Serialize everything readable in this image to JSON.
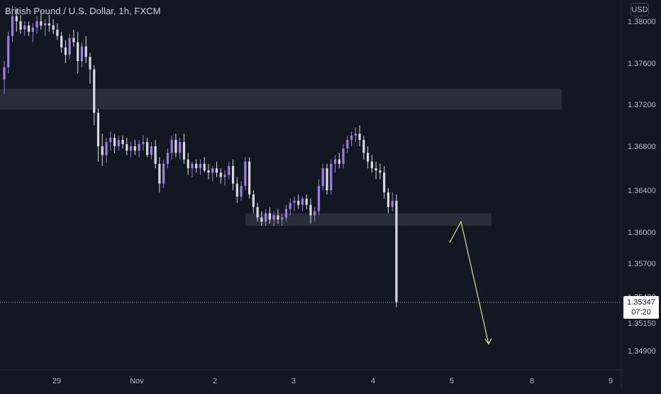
{
  "header": {
    "symbol_title": "British Pound / U.S. Dollar, 1h, FXCM"
  },
  "currency_button": {
    "label": "USD"
  },
  "price_badge": {
    "last_price": "1.35347",
    "countdown": "07:20"
  },
  "chart_data": {
    "type": "candlestick",
    "title": "British Pound / U.S. Dollar, 1h, FXCM",
    "y_axis_labels": [
      "1.38000",
      "1.37600",
      "1.37200",
      "1.36800",
      "1.36400",
      "1.36000",
      "1.35700",
      "1.35400",
      "1.35150",
      "1.34900"
    ],
    "x_axis_labels": [
      "29",
      "Nov",
      "2",
      "3",
      "4",
      "5",
      "8",
      "9"
    ],
    "last_price": 1.35347,
    "colors": {
      "background": "#131722",
      "bullish_candle": "#9c7ee0",
      "bearish_candle": "#d8d8de",
      "zone": "#2a2e39",
      "projection_arrow": "#dde08c",
      "price_line": "#b2b5be",
      "axis_text": "#b2b5be"
    },
    "zones": [
      {
        "from_price": 1.3715,
        "to_price": 1.3735
      },
      {
        "from_price": 1.3606,
        "to_price": 1.3618
      }
    ],
    "projection_path": [
      {
        "date": "Nov 4 20:00",
        "price": 1.359
      },
      {
        "date": "Nov 5 00:00",
        "price": 1.361
      },
      {
        "date": "Nov 5 10:00",
        "price": 1.3496
      }
    ],
    "candles": [
      [
        1.3744,
        1.3762,
        1.373,
        1.3756
      ],
      [
        1.3756,
        1.379,
        1.375,
        1.3786
      ],
      [
        1.3786,
        1.3815,
        1.378,
        1.3805
      ],
      [
        1.3805,
        1.3812,
        1.379,
        1.38
      ],
      [
        1.38,
        1.3806,
        1.3788,
        1.3792
      ],
      [
        1.3792,
        1.38,
        1.3786,
        1.3796
      ],
      [
        1.3796,
        1.38,
        1.3786,
        1.379
      ],
      [
        1.379,
        1.3798,
        1.378,
        1.3794
      ],
      [
        1.3794,
        1.3805,
        1.3788,
        1.38
      ],
      [
        1.38,
        1.381,
        1.3792,
        1.3796
      ],
      [
        1.3796,
        1.3802,
        1.3786,
        1.3798
      ],
      [
        1.3798,
        1.3806,
        1.379,
        1.3796
      ],
      [
        1.3796,
        1.3802,
        1.3788,
        1.3792
      ],
      [
        1.3792,
        1.3798,
        1.3782,
        1.3786
      ],
      [
        1.3786,
        1.379,
        1.377,
        1.3775
      ],
      [
        1.3775,
        1.3782,
        1.376,
        1.3768
      ],
      [
        1.3768,
        1.3788,
        1.3764,
        1.3784
      ],
      [
        1.3784,
        1.3792,
        1.3776,
        1.378
      ],
      [
        1.378,
        1.379,
        1.375,
        1.3762
      ],
      [
        1.3762,
        1.378,
        1.3756,
        1.3776
      ],
      [
        1.3776,
        1.3786,
        1.376,
        1.3766
      ],
      [
        1.3766,
        1.377,
        1.374,
        1.3754
      ],
      [
        1.3754,
        1.3758,
        1.37,
        1.3712
      ],
      [
        1.3712,
        1.3716,
        1.3666,
        1.368
      ],
      [
        1.368,
        1.3692,
        1.3662,
        1.3672
      ],
      [
        1.3672,
        1.3688,
        1.3665,
        1.3684
      ],
      [
        1.3684,
        1.3694,
        1.3676,
        1.3688
      ],
      [
        1.3688,
        1.3692,
        1.3674,
        1.368
      ],
      [
        1.368,
        1.369,
        1.3676,
        1.3686
      ],
      [
        1.3686,
        1.369,
        1.3678,
        1.3682
      ],
      [
        1.3682,
        1.3688,
        1.3672,
        1.3676
      ],
      [
        1.3676,
        1.3684,
        1.367,
        1.368
      ],
      [
        1.368,
        1.3686,
        1.3672,
        1.3676
      ],
      [
        1.3676,
        1.3686,
        1.367,
        1.3682
      ],
      [
        1.3682,
        1.369,
        1.3676,
        1.3684
      ],
      [
        1.3684,
        1.3688,
        1.367,
        1.3672
      ],
      [
        1.3672,
        1.3684,
        1.3668,
        1.368
      ],
      [
        1.368,
        1.3686,
        1.366,
        1.3664
      ],
      [
        1.3664,
        1.367,
        1.3638,
        1.3646
      ],
      [
        1.3646,
        1.3668,
        1.3642,
        1.3664
      ],
      [
        1.3664,
        1.3678,
        1.366,
        1.3674
      ],
      [
        1.3674,
        1.369,
        1.3668,
        1.3686
      ],
      [
        1.3686,
        1.3692,
        1.367,
        1.3674
      ],
      [
        1.3674,
        1.3688,
        1.3668,
        1.3684
      ],
      [
        1.3684,
        1.3692,
        1.3664,
        1.3668
      ],
      [
        1.3668,
        1.3674,
        1.3654,
        1.366
      ],
      [
        1.366,
        1.3666,
        1.3652,
        1.3664
      ],
      [
        1.3664,
        1.3668,
        1.3656,
        1.366
      ],
      [
        1.366,
        1.3668,
        1.3654,
        1.3664
      ],
      [
        1.3664,
        1.367,
        1.3656,
        1.3658
      ],
      [
        1.3658,
        1.3664,
        1.365,
        1.3656
      ],
      [
        1.3656,
        1.3662,
        1.3648,
        1.366
      ],
      [
        1.366,
        1.3666,
        1.3652,
        1.3656
      ],
      [
        1.3656,
        1.366,
        1.3646,
        1.3652
      ],
      [
        1.3652,
        1.3658,
        1.3644,
        1.3654
      ],
      [
        1.3654,
        1.3666,
        1.365,
        1.3662
      ],
      [
        1.3662,
        1.3668,
        1.364,
        1.3646
      ],
      [
        1.3646,
        1.3652,
        1.3628,
        1.3634
      ],
      [
        1.3634,
        1.3648,
        1.363,
        1.3644
      ],
      [
        1.3644,
        1.367,
        1.364,
        1.3666
      ],
      [
        1.3666,
        1.367,
        1.3632,
        1.3636
      ],
      [
        1.3636,
        1.364,
        1.3618,
        1.3624
      ],
      [
        1.3624,
        1.3628,
        1.361,
        1.3614
      ],
      [
        1.3614,
        1.362,
        1.3606,
        1.361
      ],
      [
        1.361,
        1.3622,
        1.3606,
        1.3618
      ],
      [
        1.3618,
        1.3624,
        1.3608,
        1.3612
      ],
      [
        1.3612,
        1.362,
        1.3606,
        1.3616
      ],
      [
        1.3616,
        1.3622,
        1.3608,
        1.3612
      ],
      [
        1.3612,
        1.3618,
        1.3606,
        1.3614
      ],
      [
        1.3614,
        1.3626,
        1.361,
        1.3622
      ],
      [
        1.3622,
        1.3632,
        1.3616,
        1.3628
      ],
      [
        1.3628,
        1.3634,
        1.362,
        1.363
      ],
      [
        1.363,
        1.3636,
        1.3622,
        1.3626
      ],
      [
        1.3626,
        1.3634,
        1.362,
        1.3632
      ],
      [
        1.3632,
        1.3636,
        1.3622,
        1.3626
      ],
      [
        1.3626,
        1.3632,
        1.3608,
        1.3616
      ],
      [
        1.3616,
        1.3624,
        1.361,
        1.362
      ],
      [
        1.362,
        1.365,
        1.3616,
        1.3644
      ],
      [
        1.3644,
        1.3664,
        1.364,
        1.366
      ],
      [
        1.366,
        1.3664,
        1.3636,
        1.364
      ],
      [
        1.364,
        1.3668,
        1.3636,
        1.3664
      ],
      [
        1.3664,
        1.3672,
        1.3656,
        1.3668
      ],
      [
        1.3668,
        1.3674,
        1.366,
        1.3664
      ],
      [
        1.3664,
        1.3682,
        1.366,
        1.3678
      ],
      [
        1.3678,
        1.369,
        1.3674,
        1.3686
      ],
      [
        1.3686,
        1.3694,
        1.368,
        1.369
      ],
      [
        1.369,
        1.3698,
        1.3684,
        1.3692
      ],
      [
        1.3692,
        1.37,
        1.368,
        1.3686
      ],
      [
        1.3686,
        1.369,
        1.3668,
        1.3674
      ],
      [
        1.3674,
        1.368,
        1.366,
        1.3666
      ],
      [
        1.3666,
        1.3672,
        1.3656,
        1.366
      ],
      [
        1.366,
        1.3666,
        1.365,
        1.3658
      ],
      [
        1.3658,
        1.3664,
        1.365,
        1.3656
      ],
      [
        1.3656,
        1.3662,
        1.3632,
        1.3638
      ],
      [
        1.3638,
        1.3642,
        1.3618,
        1.3624
      ],
      [
        1.3624,
        1.3638,
        1.362,
        1.363
      ],
      [
        1.363,
        1.3636,
        1.353,
        1.3535
      ]
    ]
  }
}
